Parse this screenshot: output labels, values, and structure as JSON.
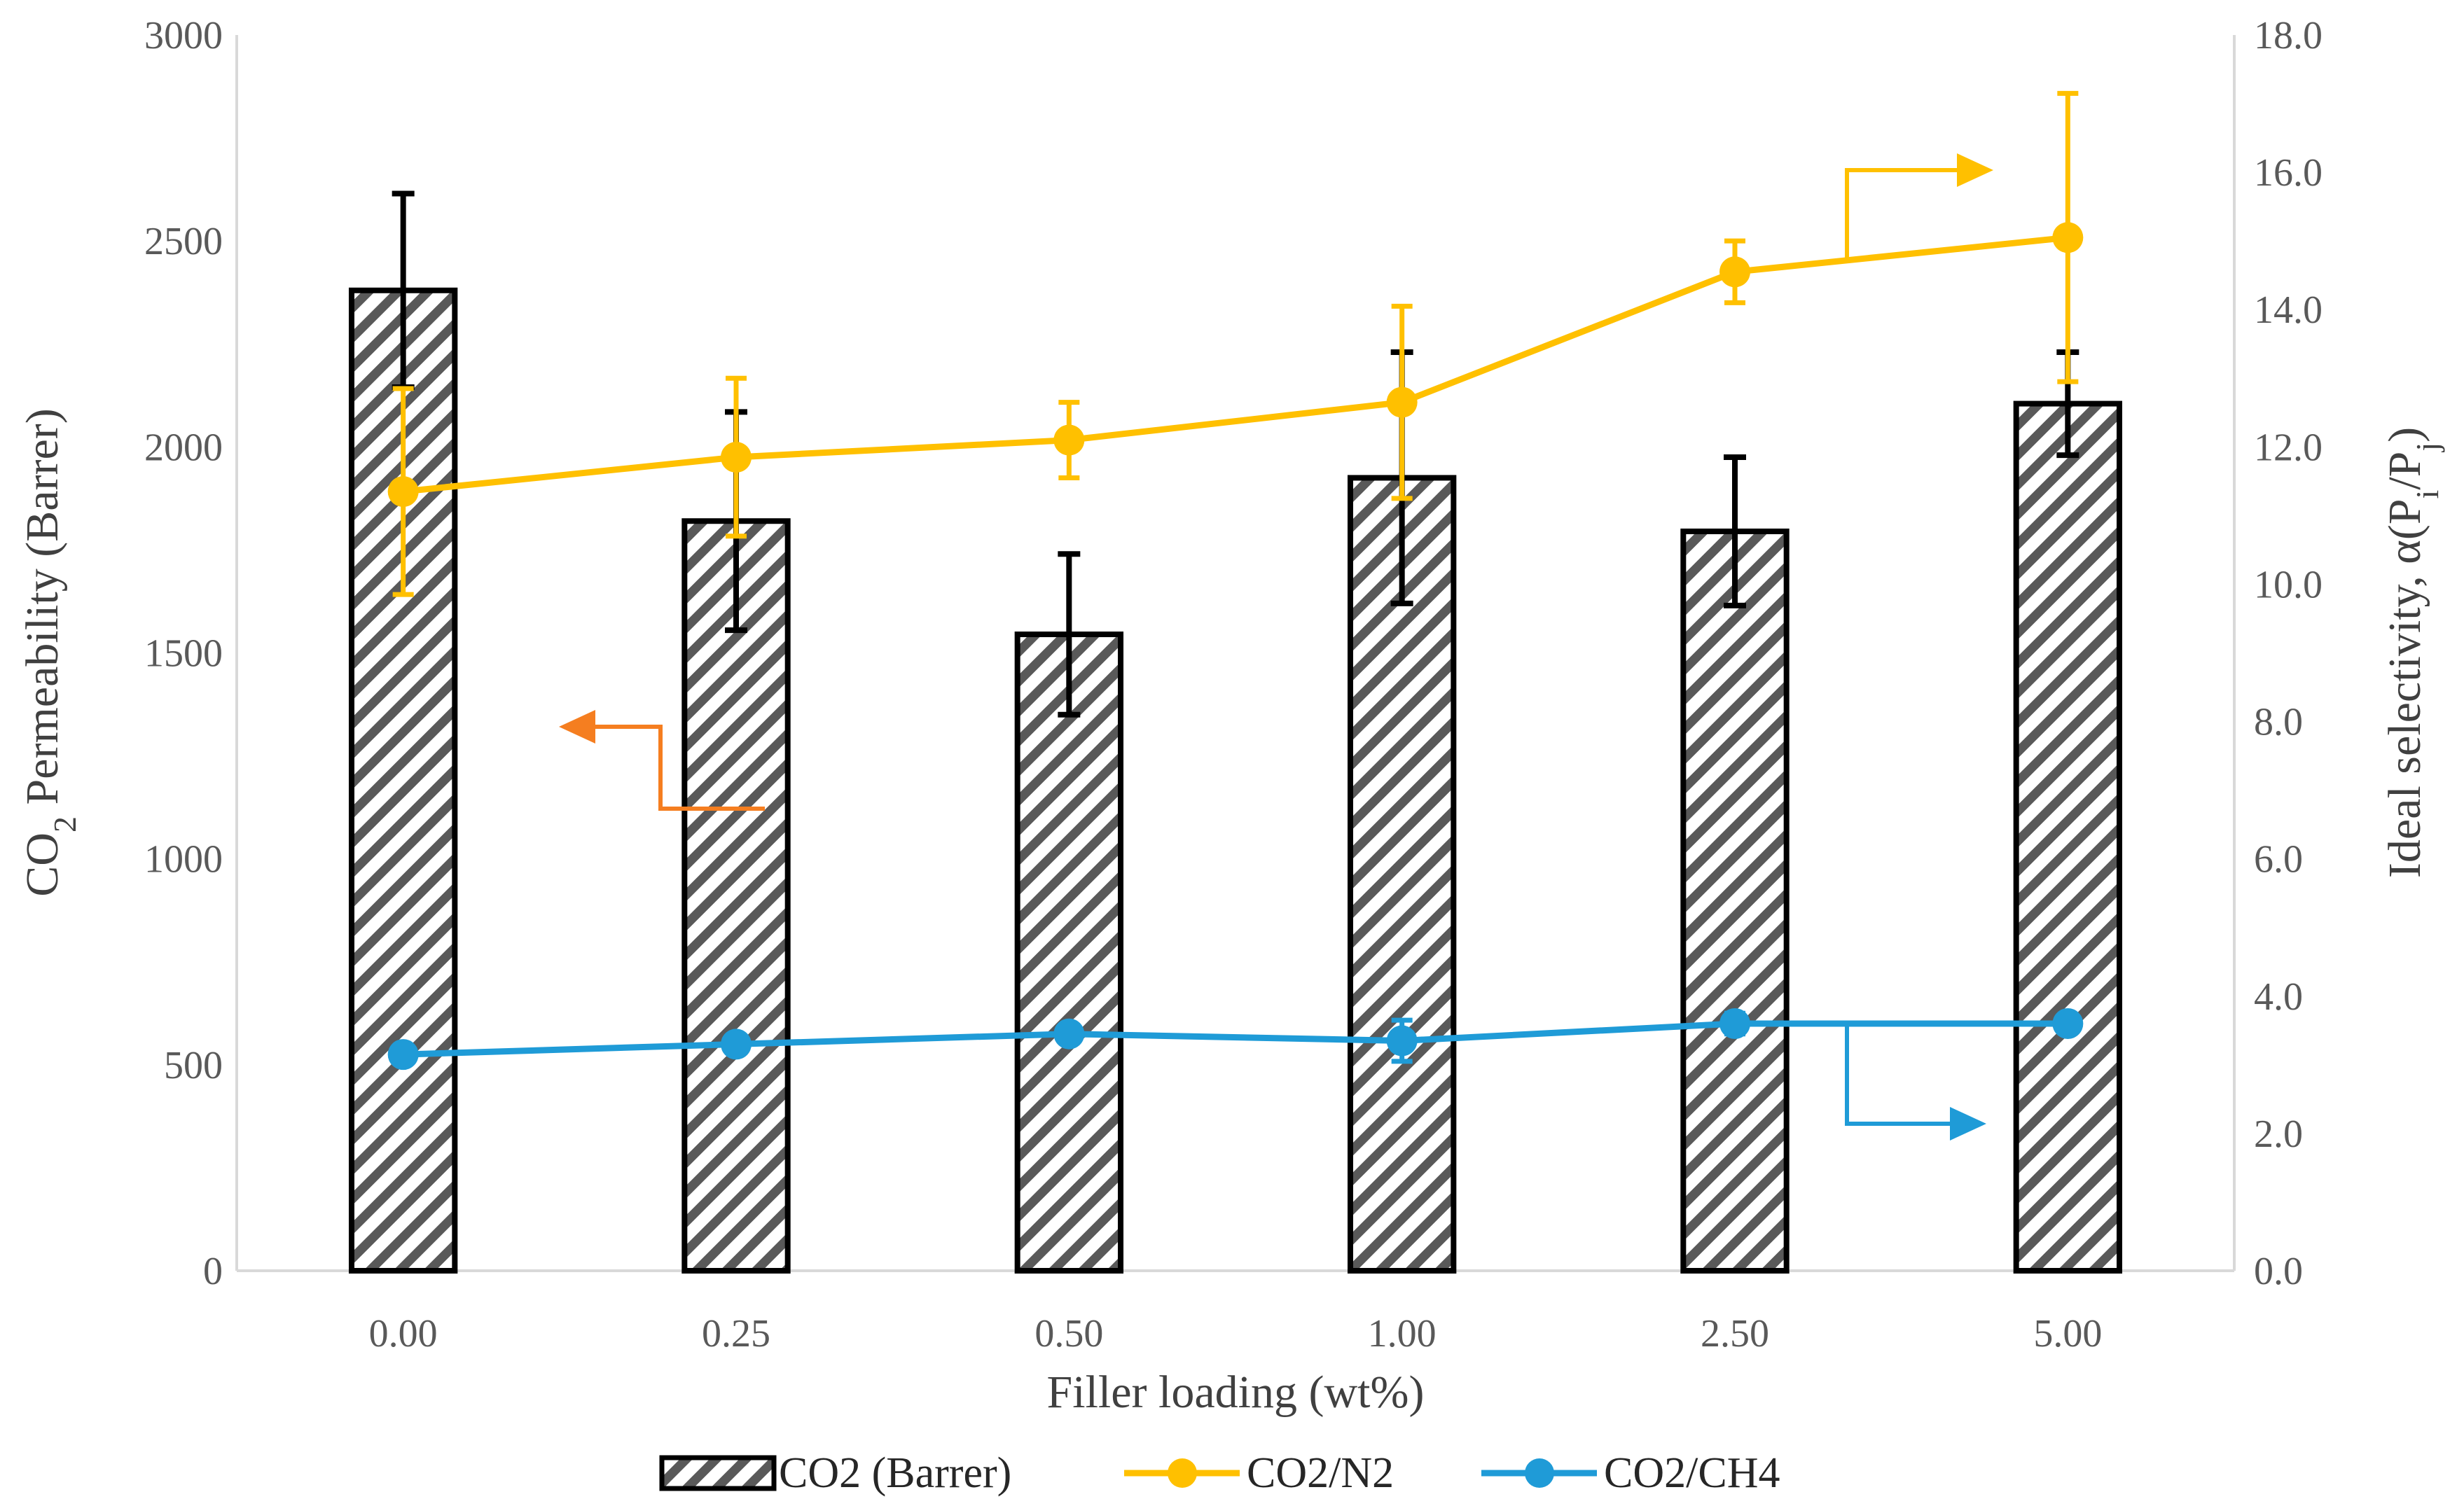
{
  "chart_data": {
    "type": "bar+line",
    "categories": [
      "0.00",
      "0.25",
      "0.50",
      "1.00",
      "2.50",
      "5.00"
    ],
    "xlabel": "Filler loading (wt%)",
    "ylabel": {
      "pre": "CO",
      "sub": "2",
      "post": " Permeability (Barrer)"
    },
    "y2label": {
      "pre": "Ideal selectivity, α(P",
      "sub1": "i",
      "mid": "/P",
      "sub2": "j",
      "post": ")"
    },
    "ylim": [
      0,
      3000
    ],
    "y2lim": [
      0,
      18
    ],
    "yticks": [
      "0",
      "500",
      "1000",
      "1500",
      "2000",
      "2500",
      "3000"
    ],
    "y2ticks": [
      "0.0",
      "2.0",
      "4.0",
      "6.0",
      "8.0",
      "10.0",
      "12.0",
      "14.0",
      "16.0",
      "18.0"
    ],
    "grid": false,
    "legend_position": "bottom",
    "bar_series": {
      "name": "CO2 (Barrer)",
      "values": [
        2380,
        1820,
        1545,
        1925,
        1795,
        2105
      ],
      "error": [
        235,
        265,
        195,
        305,
        180,
        125
      ],
      "axis": "left"
    },
    "line_series": [
      {
        "name": "CO2/N2",
        "values": [
          11.35,
          11.85,
          12.1,
          12.65,
          14.55,
          15.05
        ],
        "error": [
          1.5,
          1.15,
          0.55,
          1.4,
          0.45,
          2.1
        ],
        "color": "#FFC000",
        "axis": "right"
      },
      {
        "name": "CO2/CH4",
        "values": [
          3.15,
          3.3,
          3.45,
          3.35,
          3.6,
          3.6
        ],
        "error": [
          0,
          0,
          0,
          0.3,
          0.15,
          0
        ],
        "color": "#1F9BD7",
        "axis": "right"
      }
    ],
    "annotation_arrows": [
      {
        "target_axis": "left",
        "color": "#F57E20"
      },
      {
        "target_axis": "right",
        "color": "#FFC000"
      },
      {
        "target_axis": "right",
        "color": "#1F9BD7"
      }
    ]
  }
}
